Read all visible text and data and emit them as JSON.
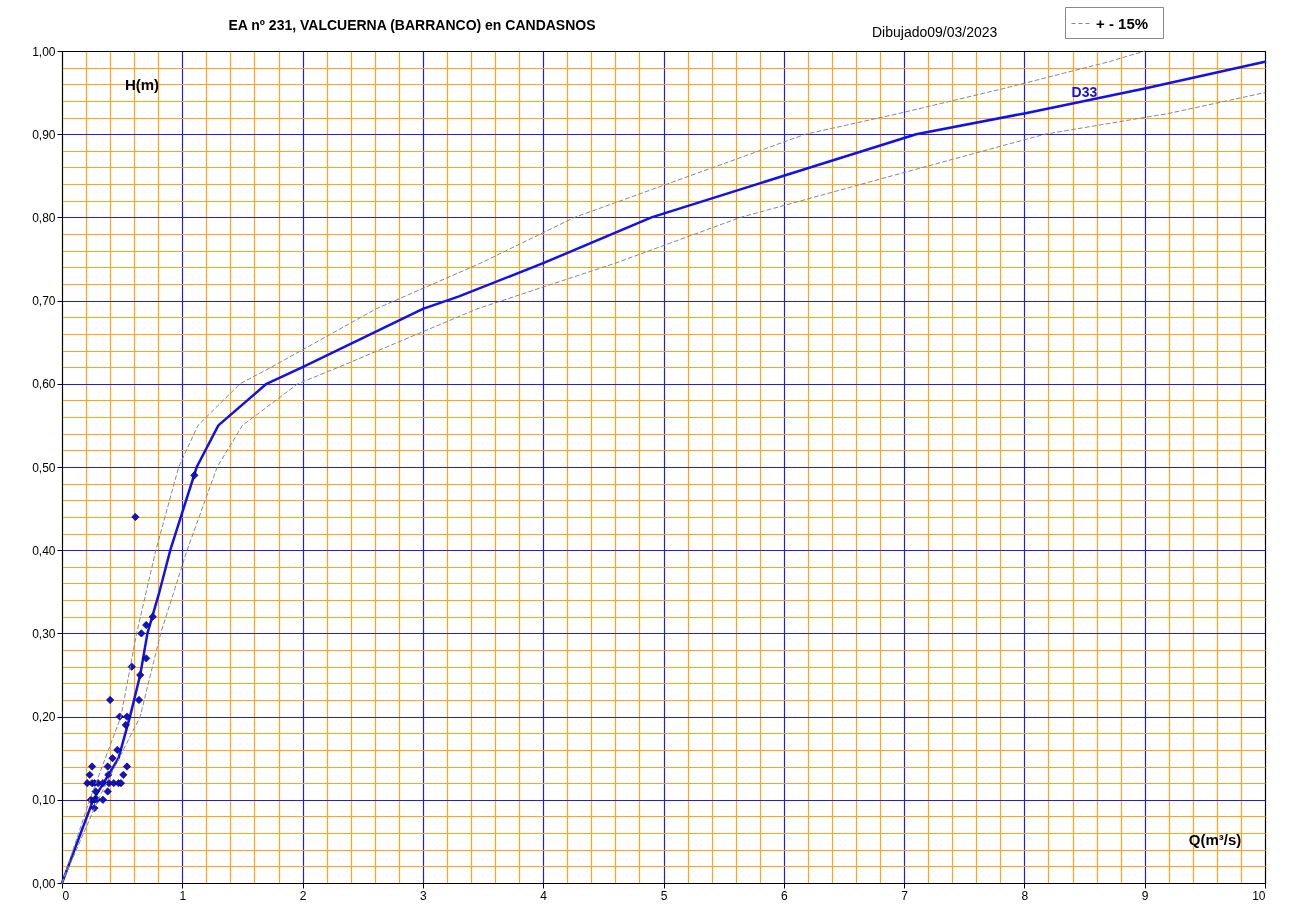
{
  "chart_data": {
    "type": "line",
    "title": "EA nº 231, VALCUERNA (BARRANCO) en CANDASNOS",
    "annotations": [
      "Dibujado09/03/2023"
    ],
    "xlabel": "Q(m³/s)",
    "ylabel": "H(m)",
    "xlim": [
      0,
      10
    ],
    "ylim": [
      0,
      1
    ],
    "xticks": [
      0,
      {
        "value": 0.2,
        "label": null
      },
      {
        "value": 0.4,
        "label": null
      },
      {
        "value": 0.6,
        "label": null
      },
      {
        "value": 0.8,
        "label": null
      },
      1,
      {
        "value": 1.2,
        "label": null
      },
      {
        "value": 1.4,
        "label": null
      },
      {
        "value": 1.6,
        "label": null
      },
      {
        "value": 1.8,
        "label": null
      },
      2,
      {
        "value": 2.2,
        "label": null
      },
      {
        "value": 2.4,
        "label": null
      },
      {
        "value": 2.6,
        "label": null
      },
      {
        "value": 2.8,
        "label": null
      },
      3,
      {
        "value": 3.2,
        "label": null
      },
      {
        "value": 3.4,
        "label": null
      },
      {
        "value": 3.6,
        "label": null
      },
      {
        "value": 3.8,
        "label": null
      },
      4,
      {
        "value": 4.2,
        "label": null
      },
      {
        "value": 4.4,
        "label": null
      },
      {
        "value": 4.6,
        "label": null
      },
      {
        "value": 4.8,
        "label": null
      },
      5,
      {
        "value": 5.2,
        "label": null
      },
      {
        "value": 5.4,
        "label": null
      },
      {
        "value": 5.6,
        "label": null
      },
      {
        "value": 5.8,
        "label": null
      },
      6,
      {
        "value": 6.2,
        "label": null
      },
      {
        "value": 6.4,
        "label": null
      },
      {
        "value": 6.6,
        "label": null
      },
      {
        "value": 6.8,
        "label": null
      },
      7,
      {
        "value": 7.2,
        "label": null
      },
      {
        "value": 7.4,
        "label": null
      },
      {
        "value": 7.6,
        "label": null
      },
      {
        "value": 7.8,
        "label": null
      },
      8,
      {
        "value": 8.2,
        "label": null
      },
      {
        "value": 8.4,
        "label": null
      },
      {
        "value": 8.6,
        "label": null
      },
      {
        "value": 8.8,
        "label": null
      },
      9,
      {
        "value": 9.2,
        "label": null
      },
      {
        "value": 9.4,
        "label": null
      },
      {
        "value": 9.6,
        "label": null
      },
      {
        "value": 9.8,
        "label": null
      },
      10
    ],
    "yticks": [
      {
        "value": 0,
        "label": "0,00"
      },
      {
        "value": 0.02,
        "label": null
      },
      {
        "value": 0.04,
        "label": null
      },
      {
        "value": 0.06,
        "label": null
      },
      {
        "value": 0.08,
        "label": null
      },
      {
        "value": 0.1,
        "label": "0,10"
      },
      {
        "value": 0.12,
        "label": null
      },
      {
        "value": 0.14,
        "label": null
      },
      {
        "value": 0.16,
        "label": null
      },
      {
        "value": 0.18,
        "label": null
      },
      {
        "value": 0.2,
        "label": "0,20"
      },
      {
        "value": 0.22,
        "label": null
      },
      {
        "value": 0.24,
        "label": null
      },
      {
        "value": 0.26,
        "label": null
      },
      {
        "value": 0.28,
        "label": null
      },
      {
        "value": 0.3,
        "label": "0,30"
      },
      {
        "value": 0.32,
        "label": null
      },
      {
        "value": 0.34,
        "label": null
      },
      {
        "value": 0.36,
        "label": null
      },
      {
        "value": 0.38,
        "label": null
      },
      {
        "value": 0.4,
        "label": "0,40"
      },
      {
        "value": 0.42,
        "label": null
      },
      {
        "value": 0.44,
        "label": null
      },
      {
        "value": 0.46,
        "label": null
      },
      {
        "value": 0.48,
        "label": null
      },
      {
        "value": 0.5,
        "label": "0,50"
      },
      {
        "value": 0.52,
        "label": null
      },
      {
        "value": 0.54,
        "label": null
      },
      {
        "value": 0.56,
        "label": null
      },
      {
        "value": 0.58,
        "label": null
      },
      {
        "value": 0.6,
        "label": "0,60"
      },
      {
        "value": 0.62,
        "label": null
      },
      {
        "value": 0.64,
        "label": null
      },
      {
        "value": 0.66,
        "label": null
      },
      {
        "value": 0.68,
        "label": null
      },
      {
        "value": 0.7,
        "label": "0,70"
      },
      {
        "value": 0.72,
        "label": null
      },
      {
        "value": 0.74,
        "label": null
      },
      {
        "value": 0.76,
        "label": null
      },
      {
        "value": 0.78,
        "label": null
      },
      {
        "value": 0.8,
        "label": "0,80"
      },
      {
        "value": 0.82,
        "label": null
      },
      {
        "value": 0.84,
        "label": null
      },
      {
        "value": 0.86,
        "label": null
      },
      {
        "value": 0.88,
        "label": null
      },
      {
        "value": 0.9,
        "label": "0,90"
      },
      {
        "value": 0.92,
        "label": null
      },
      {
        "value": 0.94,
        "label": null
      },
      {
        "value": 0.96,
        "label": null
      },
      {
        "value": 0.98,
        "label": null
      },
      {
        "value": 1,
        "label": "1,00"
      }
    ],
    "grid": true,
    "legend": "top right",
    "series": [
      {
        "name": "D33",
        "type": "line",
        "line_style": "solid",
        "color": "#1010f0",
        "x": [
          0,
          0.26,
          0.47,
          0.565,
          0.65,
          0.71,
          0.81,
          0.9,
          1.12,
          1.3,
          1.7,
          2,
          3,
          3.3,
          4,
          4.9,
          6,
          7.1,
          8,
          9,
          10
        ],
        "values": [
          0,
          0.1,
          0.15,
          0.2,
          0.25,
          0.3,
          0.35,
          0.4,
          0.5,
          0.55,
          0.6,
          0.62,
          0.69,
          0.705,
          0.745,
          0.8,
          0.85,
          0.9,
          0.925,
          0.955,
          0.987
        ]
      },
      {
        "name": "+ -   15%",
        "type": "line",
        "line_style": "dashed",
        "color": "#888888",
        "x": [
          0,
          0.23,
          0.49,
          0.62,
          0.78,
          0.97,
          1.13,
          1.48,
          1.74,
          2.61,
          3.48,
          4.26,
          5.22,
          6.18,
          6.96,
          7.83,
          8.7,
          9
        ],
        "values": [
          0,
          0.1,
          0.2,
          0.3,
          0.4,
          0.5,
          0.55,
          0.6,
          0.62,
          0.69,
          0.745,
          0.8,
          0.85,
          0.9,
          0.925,
          0.955,
          0.987,
          1
        ]
      },
      {
        "type": "line",
        "line_style": "dashed",
        "color": "#888888",
        "x": [
          0,
          0.3,
          0.65,
          0.82,
          1.04,
          1.29,
          1.5,
          1.96,
          2.3,
          3.45,
          4.6,
          5.64,
          6.9,
          8.17,
          9.2,
          10
        ],
        "values": [
          0,
          0.1,
          0.2,
          0.3,
          0.4,
          0.5,
          0.55,
          0.6,
          0.62,
          0.69,
          0.745,
          0.8,
          0.85,
          0.9,
          0.925,
          0.95
        ]
      },
      {
        "type": "scatter",
        "marker": "diamond",
        "color": "#1010d0",
        "x": [
          0.754,
          0.7,
          0.66,
          0.7,
          0.58,
          0.65,
          0.4,
          0.64,
          0.48,
          0.54,
          0.53,
          0.46,
          0.42,
          0.25,
          0.38,
          0.54,
          0.23,
          0.385,
          0.51,
          0.21,
          0.25,
          0.27,
          0.3,
          0.34,
          0.39,
          0.43,
          0.47,
          0.49,
          0.28,
          0.38,
          0.24,
          0.27,
          0.29,
          0.34,
          0.27,
          1.1,
          0.61
        ],
        "values": [
          0.32,
          0.31,
          0.3,
          0.27,
          0.26,
          0.25,
          0.22,
          0.22,
          0.2,
          0.2,
          0.19,
          0.16,
          0.15,
          0.14,
          0.14,
          0.14,
          0.13,
          0.13,
          0.13,
          0.12,
          0.12,
          0.12,
          0.12,
          0.12,
          0.12,
          0.12,
          0.12,
          0.12,
          0.11,
          0.11,
          0.1,
          0.1,
          0.1,
          0.1,
          0.09,
          0.49,
          0.44
        ]
      }
    ]
  }
}
